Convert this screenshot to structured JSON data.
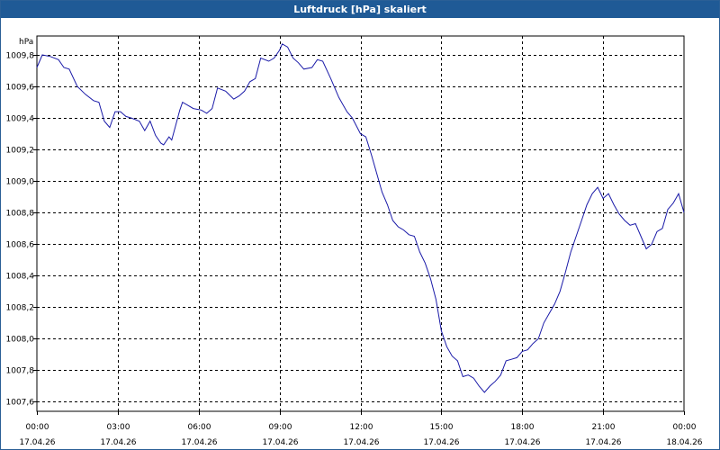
{
  "window": {
    "title": "Luftdruck [hPa] skaliert"
  },
  "colors": {
    "line": "#1a1aa8",
    "grid": "#000000",
    "titlebar": "#1f5a96"
  },
  "chart_data": {
    "type": "line",
    "title": "Luftdruck [hPa] skaliert",
    "ylabel": "hPa",
    "xlabel": "",
    "grid": true,
    "ylim": [
      1007.54,
      1009.92
    ],
    "xlim": [
      0,
      24
    ],
    "y_ticks": [
      {
        "value": 1007.6,
        "label": "1007,6"
      },
      {
        "value": 1007.8,
        "label": "1007,8"
      },
      {
        "value": 1008.0,
        "label": "1008,0"
      },
      {
        "value": 1008.2,
        "label": "1008,2"
      },
      {
        "value": 1008.4,
        "label": "1008,4"
      },
      {
        "value": 1008.6,
        "label": "1008,6"
      },
      {
        "value": 1008.8,
        "label": "1008,8"
      },
      {
        "value": 1009.0,
        "label": "1009,0"
      },
      {
        "value": 1009.2,
        "label": "1009,2"
      },
      {
        "value": 1009.4,
        "label": "1009,4"
      },
      {
        "value": 1009.6,
        "label": "1009,6"
      },
      {
        "value": 1009.8,
        "label": "1009,8"
      }
    ],
    "x_ticks": [
      {
        "value": 0,
        "time": "00:00",
        "date": "17.04.26"
      },
      {
        "value": 3,
        "time": "03:00",
        "date": "17.04.26"
      },
      {
        "value": 6,
        "time": "06:00",
        "date": "17.04.26"
      },
      {
        "value": 9,
        "time": "09:00",
        "date": "17.04.26"
      },
      {
        "value": 12,
        "time": "12:00",
        "date": "17.04.26"
      },
      {
        "value": 15,
        "time": "15:00",
        "date": "17.04.26"
      },
      {
        "value": 18,
        "time": "18:00",
        "date": "17.04.26"
      },
      {
        "value": 21,
        "time": "21:00",
        "date": "17.04.26"
      },
      {
        "value": 24,
        "time": "00:00",
        "date": "18.04.26"
      }
    ],
    "series": [
      {
        "name": "Luftdruck",
        "points": [
          [
            0.0,
            1009.72
          ],
          [
            0.2,
            1009.8
          ],
          [
            0.5,
            1009.79
          ],
          [
            0.8,
            1009.77
          ],
          [
            1.0,
            1009.72
          ],
          [
            1.2,
            1009.71
          ],
          [
            1.5,
            1009.6
          ],
          [
            1.8,
            1009.55
          ],
          [
            2.1,
            1009.51
          ],
          [
            2.3,
            1009.5
          ],
          [
            2.5,
            1009.38
          ],
          [
            2.7,
            1009.34
          ],
          [
            2.9,
            1009.44
          ],
          [
            3.1,
            1009.44
          ],
          [
            3.3,
            1009.41
          ],
          [
            3.5,
            1009.4
          ],
          [
            3.8,
            1009.38
          ],
          [
            4.0,
            1009.32
          ],
          [
            4.2,
            1009.38
          ],
          [
            4.4,
            1009.29
          ],
          [
            4.6,
            1009.24
          ],
          [
            4.7,
            1009.23
          ],
          [
            4.9,
            1009.28
          ],
          [
            5.0,
            1009.26
          ],
          [
            5.3,
            1009.45
          ],
          [
            5.4,
            1009.5
          ],
          [
            5.6,
            1009.48
          ],
          [
            5.8,
            1009.46
          ],
          [
            6.1,
            1009.45
          ],
          [
            6.3,
            1009.43
          ],
          [
            6.5,
            1009.46
          ],
          [
            6.7,
            1009.59
          ],
          [
            7.0,
            1009.57
          ],
          [
            7.3,
            1009.52
          ],
          [
            7.5,
            1009.54
          ],
          [
            7.7,
            1009.57
          ],
          [
            7.9,
            1009.63
          ],
          [
            8.1,
            1009.65
          ],
          [
            8.3,
            1009.78
          ],
          [
            8.6,
            1009.76
          ],
          [
            8.8,
            1009.78
          ],
          [
            9.0,
            1009.83
          ],
          [
            9.1,
            1009.87
          ],
          [
            9.3,
            1009.85
          ],
          [
            9.5,
            1009.78
          ],
          [
            9.7,
            1009.75
          ],
          [
            9.9,
            1009.71
          ],
          [
            10.2,
            1009.72
          ],
          [
            10.4,
            1009.77
          ],
          [
            10.6,
            1009.76
          ],
          [
            10.9,
            1009.65
          ],
          [
            11.2,
            1009.53
          ],
          [
            11.5,
            1009.44
          ],
          [
            11.7,
            1009.4
          ],
          [
            12.0,
            1009.3
          ],
          [
            12.2,
            1009.28
          ],
          [
            12.4,
            1009.17
          ],
          [
            12.6,
            1009.05
          ],
          [
            12.8,
            1008.93
          ],
          [
            13.0,
            1008.85
          ],
          [
            13.2,
            1008.75
          ],
          [
            13.4,
            1008.71
          ],
          [
            13.6,
            1008.69
          ],
          [
            13.8,
            1008.66
          ],
          [
            14.0,
            1008.65
          ],
          [
            14.2,
            1008.55
          ],
          [
            14.4,
            1008.48
          ],
          [
            14.6,
            1008.38
          ],
          [
            14.8,
            1008.25
          ],
          [
            15.0,
            1008.05
          ],
          [
            15.2,
            1007.95
          ],
          [
            15.4,
            1007.89
          ],
          [
            15.6,
            1007.86
          ],
          [
            15.8,
            1007.76
          ],
          [
            16.0,
            1007.77
          ],
          [
            16.2,
            1007.75
          ],
          [
            16.4,
            1007.7
          ],
          [
            16.6,
            1007.66
          ],
          [
            16.8,
            1007.7
          ],
          [
            17.0,
            1007.73
          ],
          [
            17.2,
            1007.77
          ],
          [
            17.4,
            1007.86
          ],
          [
            17.6,
            1007.87
          ],
          [
            17.8,
            1007.88
          ],
          [
            18.0,
            1007.92
          ],
          [
            18.2,
            1007.93
          ],
          [
            18.4,
            1007.97
          ],
          [
            18.6,
            1008.0
          ],
          [
            18.8,
            1008.1
          ],
          [
            19.0,
            1008.16
          ],
          [
            19.2,
            1008.22
          ],
          [
            19.4,
            1008.3
          ],
          [
            19.6,
            1008.42
          ],
          [
            19.8,
            1008.55
          ],
          [
            20.0,
            1008.65
          ],
          [
            20.2,
            1008.75
          ],
          [
            20.4,
            1008.85
          ],
          [
            20.6,
            1008.92
          ],
          [
            20.8,
            1008.96
          ],
          [
            21.0,
            1008.89
          ],
          [
            21.2,
            1008.92
          ],
          [
            21.4,
            1008.85
          ],
          [
            21.6,
            1008.79
          ],
          [
            21.8,
            1008.75
          ],
          [
            22.0,
            1008.72
          ],
          [
            22.2,
            1008.73
          ],
          [
            22.4,
            1008.65
          ],
          [
            22.6,
            1008.57
          ],
          [
            22.8,
            1008.6
          ],
          [
            23.0,
            1008.68
          ],
          [
            23.2,
            1008.7
          ],
          [
            23.4,
            1008.82
          ],
          [
            23.6,
            1008.86
          ],
          [
            23.8,
            1008.92
          ],
          [
            24.0,
            1008.8
          ]
        ]
      }
    ]
  }
}
